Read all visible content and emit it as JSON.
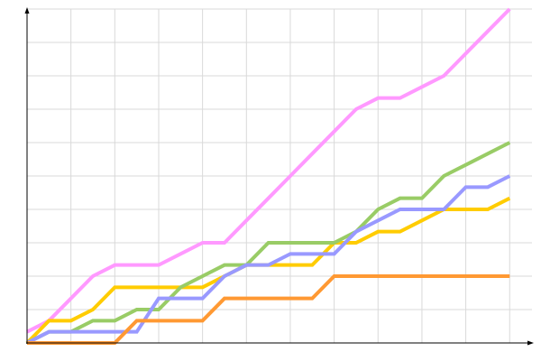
{
  "chart_data": {
    "type": "line",
    "title": "",
    "xlabel": "",
    "ylabel": "",
    "x": [
      0,
      1,
      2,
      3,
      4,
      5,
      6,
      7,
      8,
      9,
      10,
      11,
      12,
      13,
      14,
      15,
      16,
      17,
      18,
      19,
      20,
      21,
      22
    ],
    "xlim": [
      0,
      22.6
    ],
    "ylim": [
      0,
      30
    ],
    "grid": true,
    "grid_x_step": 2,
    "grid_y_step": 3,
    "legend": "none",
    "series": [
      {
        "color": "#ff99ff",
        "values": [
          1,
          2,
          4,
          6,
          7,
          7,
          7,
          8,
          9,
          9,
          11,
          13,
          15,
          17,
          19,
          21,
          22,
          22,
          23,
          24,
          26,
          28,
          30
        ]
      },
      {
        "color": "#ffcc00",
        "values": [
          0,
          2,
          2,
          3,
          5,
          5,
          5,
          5,
          5,
          6,
          7,
          7,
          7,
          7,
          9,
          9,
          10,
          10,
          11,
          12,
          12,
          12,
          13
        ]
      },
      {
        "color": "#99cc66",
        "values": [
          0,
          1,
          1,
          2,
          2,
          3,
          3,
          5,
          6,
          7,
          7,
          9,
          9,
          9,
          9,
          10,
          12,
          13,
          13,
          15,
          16,
          17,
          18
        ]
      },
      {
        "color": "#9999ff",
        "values": [
          0,
          1,
          1,
          1,
          1,
          1,
          4,
          4,
          4,
          6,
          7,
          7,
          8,
          8,
          8,
          10,
          11,
          12,
          12,
          12,
          14,
          14,
          15
        ]
      },
      {
        "color": "#ff9933",
        "values": [
          0,
          0,
          0,
          0,
          0,
          2,
          2,
          2,
          2,
          4,
          4,
          4,
          4,
          4,
          6,
          6,
          6,
          6,
          6,
          6,
          6,
          6,
          6
        ]
      }
    ]
  }
}
